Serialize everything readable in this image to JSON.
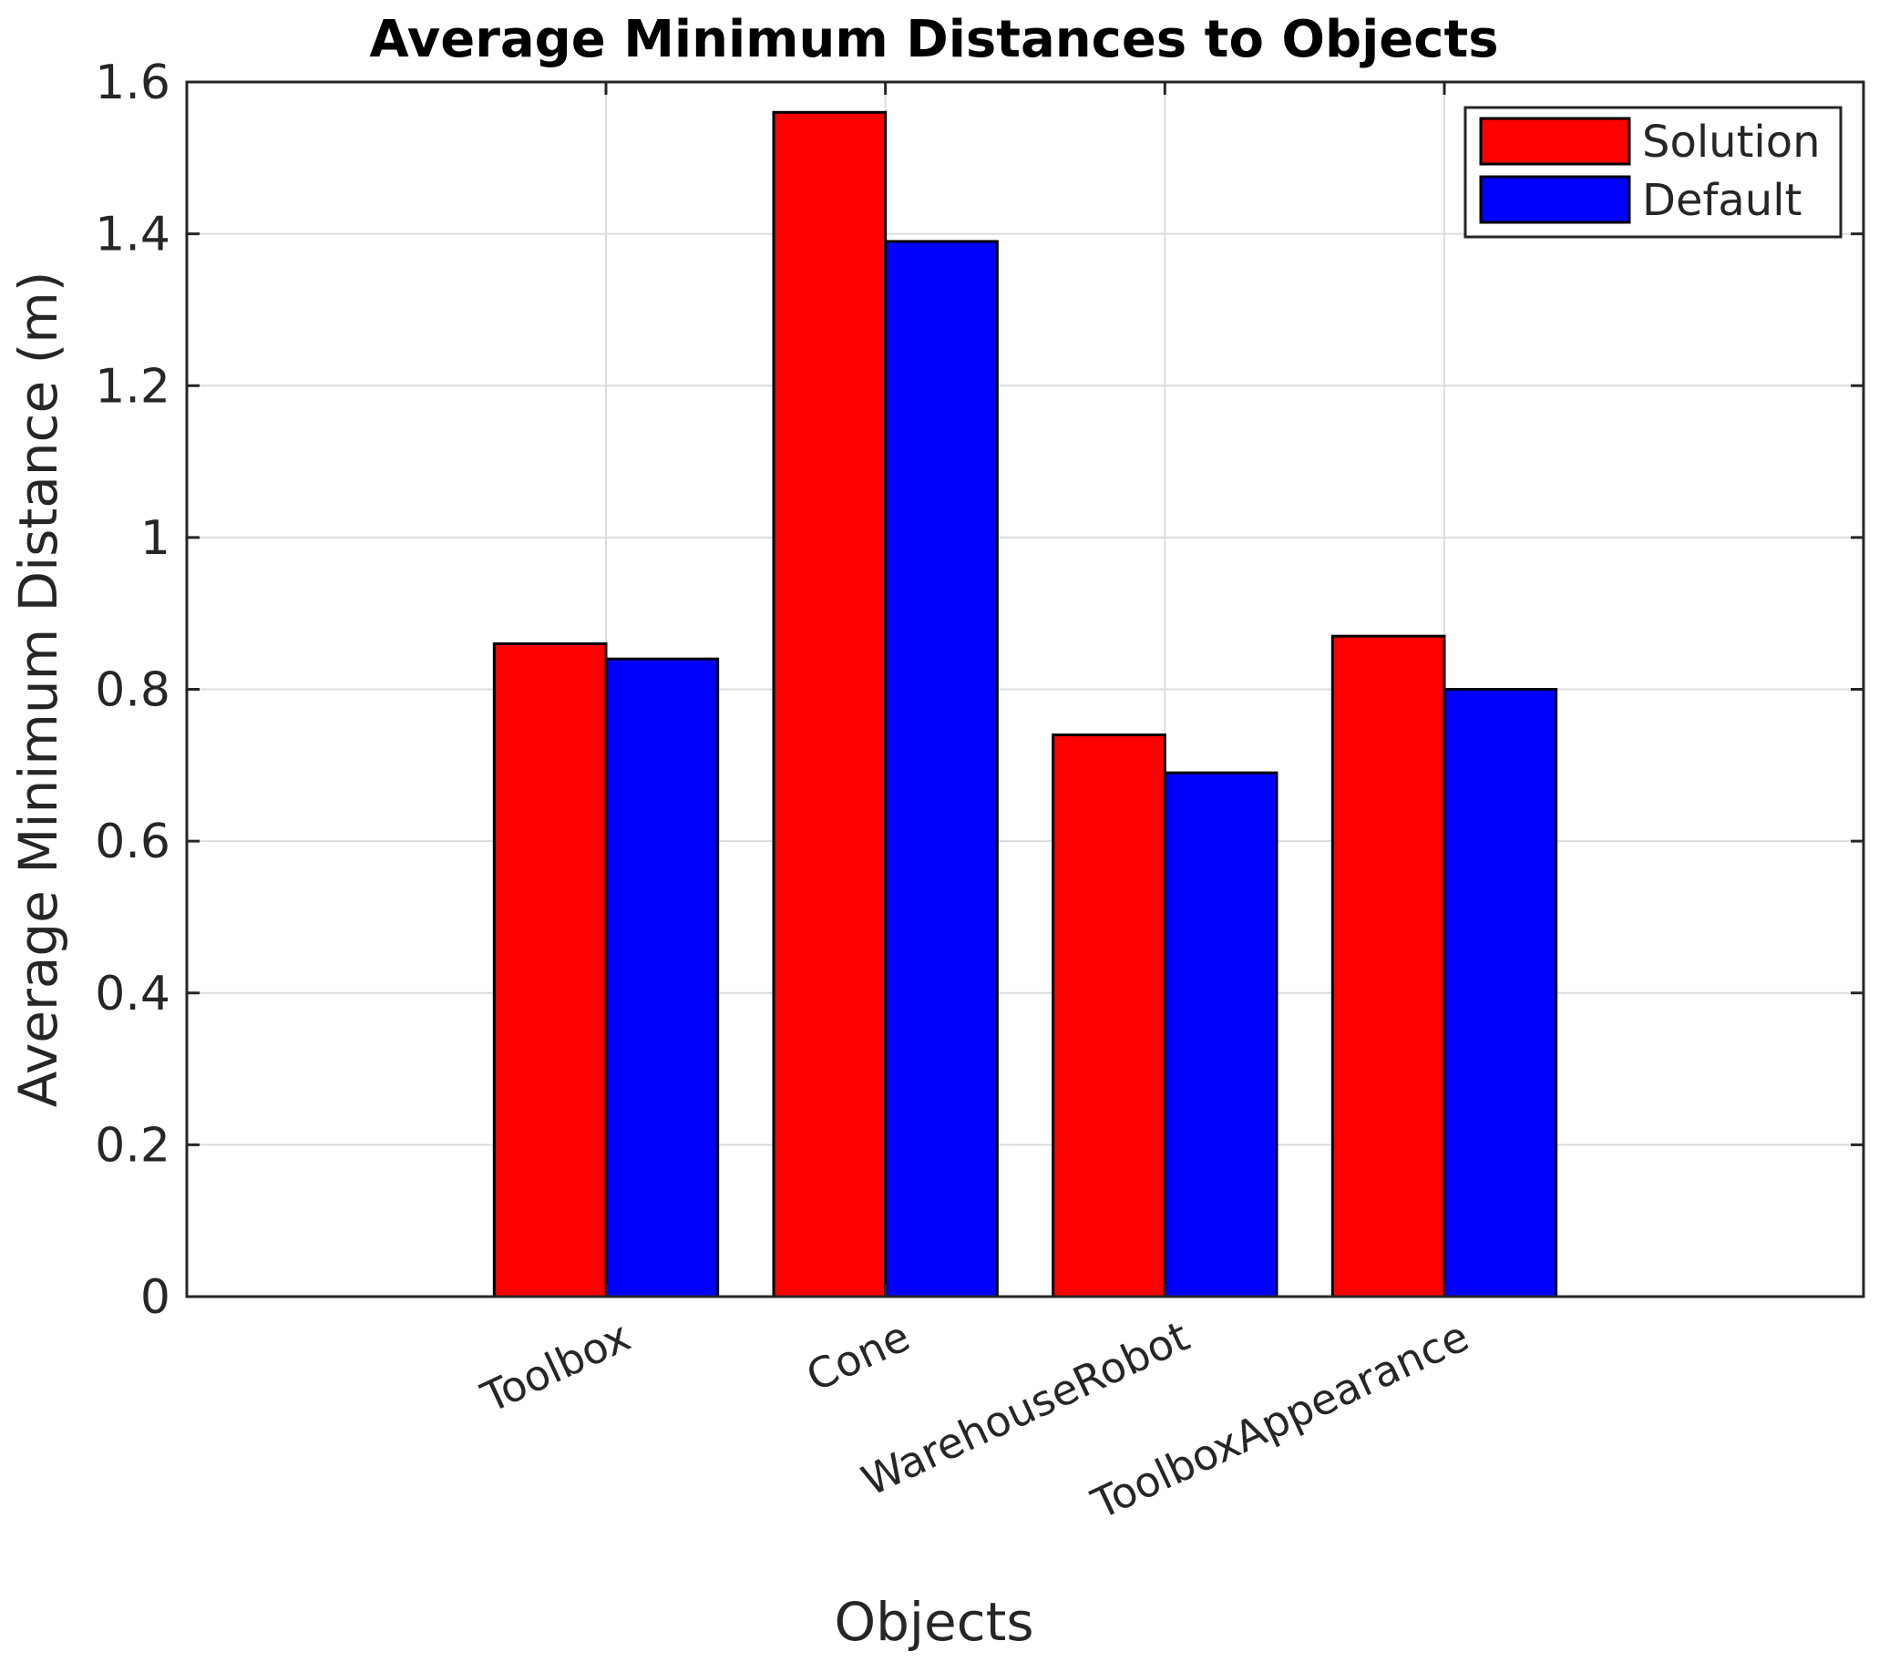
{
  "chart_data": {
    "type": "bar",
    "title": "Average Minimum Distances to Objects",
    "xlabel": "Objects",
    "ylabel": "Average Minimum Distance (m)",
    "categories": [
      "Toolbox",
      "Cone",
      "WarehouseRobot",
      "ToolboxAppearance"
    ],
    "series": [
      {
        "name": "Solution",
        "color": "#ff0000",
        "values": [
          0.86,
          1.56,
          0.74,
          0.87
        ]
      },
      {
        "name": "Default",
        "color": "#0000ff",
        "values": [
          0.84,
          1.39,
          0.69,
          0.8
        ]
      }
    ],
    "ylim": [
      0,
      1.6
    ],
    "yticks": [
      0,
      0.2,
      0.4,
      0.6,
      0.8,
      1,
      1.2,
      1.4,
      1.6
    ],
    "ytick_labels": [
      "0",
      "0.2",
      "0.4",
      "0.6",
      "0.8",
      "1",
      "1.2",
      "1.4",
      "1.6"
    ],
    "grid": true,
    "legend_position": "top-right"
  }
}
